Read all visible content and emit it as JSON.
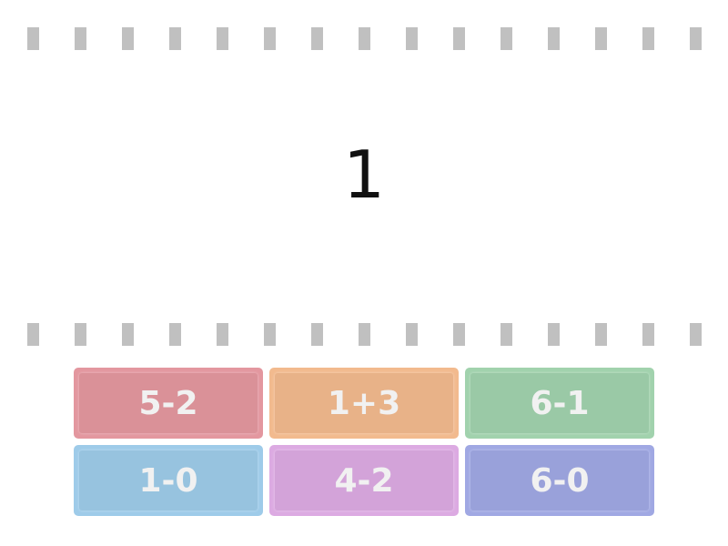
{
  "prompt": "1",
  "answers": [
    {
      "label": "5-2",
      "color": "#e3979f"
    },
    {
      "label": "1+3",
      "color": "#f2ba8e"
    },
    {
      "label": "6-1",
      "color": "#a1d2ad"
    },
    {
      "label": "1-0",
      "color": "#9ecbe9"
    },
    {
      "label": "4-2",
      "color": "#dcaae2"
    },
    {
      "label": "6-0",
      "color": "#a0a8e3"
    }
  ]
}
